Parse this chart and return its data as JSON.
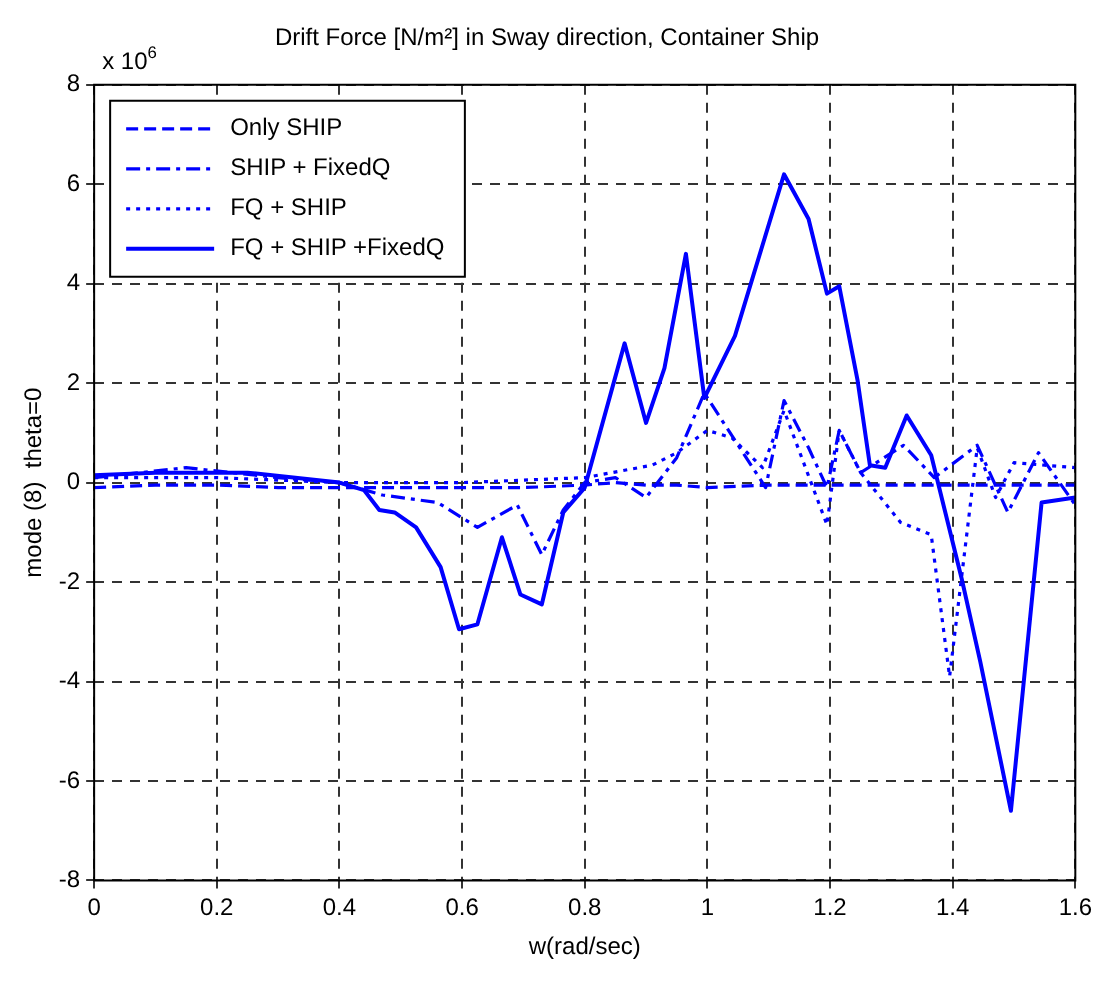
{
  "chart_data": {
    "type": "line",
    "title": "Drift Force [N/m²] in Sway direction, Container Ship",
    "xlabel": "w(rad/sec)",
    "ylabel": "mode (8)  theta=0",
    "annotations": [
      "x 10$^{6}$"
    ],
    "xlim": [
      0,
      1.6
    ],
    "xticks": [
      0,
      0.2,
      0.4,
      0.6,
      0.8,
      1,
      1.2,
      1.4,
      1.6
    ],
    "ylim": [
      -8,
      8
    ],
    "yticks": [
      -8,
      -6,
      -4,
      -2,
      0,
      2,
      4,
      6,
      8
    ],
    "grid": true,
    "legend": "top left",
    "marker": "none",
    "series": [
      {
        "name": "Only SHIP",
        "color": "#0000ff",
        "line_style": "dashed",
        "x": [
          0,
          0.1,
          0.2,
          0.3,
          0.4,
          0.5,
          0.6,
          0.7,
          0.8,
          0.85,
          0.9,
          0.95,
          1,
          1.1,
          1.2,
          1.3,
          1.4,
          1.5,
          1.6
        ],
        "values": [
          -0.1,
          -0.05,
          -0.05,
          -0.1,
          -0.1,
          -0.1,
          -0.1,
          -0.1,
          -0.05,
          0,
          -0.05,
          -0.05,
          -0.1,
          -0.05,
          -0.05,
          -0.05,
          -0.05,
          -0.05,
          -0.05
        ]
      },
      {
        "name": "SHIP + FixedQ",
        "color": "#0000ff",
        "line_style": "dashdot",
        "x": [
          0,
          0.15,
          0.3,
          0.4,
          0.47,
          0.56,
          0.625,
          0.69,
          0.73,
          0.765,
          0.8,
          0.85,
          0.9,
          0.95,
          0.995,
          1.045,
          1.095,
          1.125,
          1.165,
          1.195,
          1.215,
          1.25,
          1.32,
          1.37,
          1.44,
          1.49,
          1.54,
          1.6
        ],
        "values": [
          0.1,
          0.3,
          0.1,
          0,
          -0.25,
          -0.4,
          -0.9,
          -0.45,
          -1.45,
          -0.55,
          0,
          0.1,
          -0.3,
          0.5,
          1.8,
          0.85,
          -0.1,
          1.65,
          0.7,
          -0.1,
          1.05,
          0.2,
          0.75,
          0.1,
          0.75,
          -0.6,
          0.6,
          -0.45
        ]
      },
      {
        "name": "FQ + SHIP",
        "color": "#0000ff",
        "line_style": "dotted",
        "x": [
          0,
          0.2,
          0.4,
          0.6,
          0.8,
          0.91,
          0.95,
          1,
          1.04,
          1.09,
          1.125,
          1.195,
          1.215,
          1.25,
          1.315,
          1.365,
          1.395,
          1.44,
          1.47,
          1.5,
          1.55,
          1.6
        ],
        "values": [
          0.1,
          0.1,
          0,
          0,
          0.1,
          0.35,
          0.6,
          1.05,
          0.9,
          0.3,
          1.45,
          -0.85,
          1.05,
          0.2,
          -0.8,
          -1.05,
          -3.9,
          0.7,
          -0.3,
          0.4,
          0.35,
          0.3
        ]
      },
      {
        "name": "FQ + SHIP +FixedQ",
        "color": "#0000ff",
        "line_style": "solid",
        "x": [
          0,
          0.1,
          0.25,
          0.4,
          0.44,
          0.465,
          0.49,
          0.525,
          0.565,
          0.595,
          0.625,
          0.665,
          0.695,
          0.73,
          0.765,
          0.8,
          0.865,
          0.9,
          0.93,
          0.965,
          0.995,
          1.045,
          1.125,
          1.165,
          1.195,
          1.215,
          1.245,
          1.265,
          1.29,
          1.325,
          1.365,
          1.415,
          1.445,
          1.495,
          1.545,
          1.6
        ],
        "values": [
          0.15,
          0.2,
          0.2,
          0,
          -0.15,
          -0.55,
          -0.6,
          -0.9,
          -1.7,
          -2.95,
          -2.85,
          -1.1,
          -2.25,
          -2.45,
          -0.6,
          -0.1,
          2.8,
          1.2,
          2.3,
          4.6,
          1.7,
          2.95,
          6.2,
          5.3,
          3.8,
          3.95,
          2.05,
          0.35,
          0.3,
          1.35,
          0.55,
          -1.95,
          -3.6,
          -6.6,
          -0.4,
          -0.3
        ]
      }
    ]
  }
}
